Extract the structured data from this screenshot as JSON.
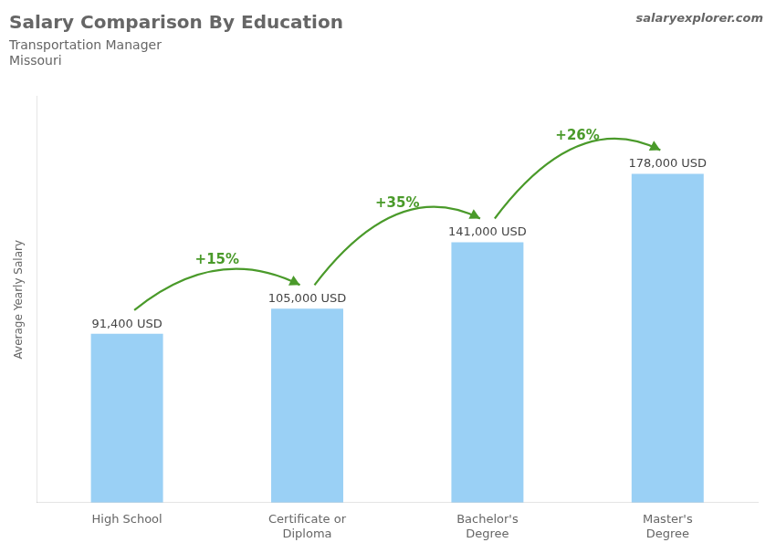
{
  "chart_data": {
    "type": "bar",
    "title": "Salary Comparison By Education",
    "subtitle": "Transportation Manager",
    "location": "Missouri",
    "credit": "salaryexplorer.com",
    "y_label": "Average Yearly Salary",
    "categories": [
      "High School",
      "Certificate or\nDiploma",
      "Bachelor's\nDegree",
      "Master's\nDegree"
    ],
    "values": [
      91400,
      105000,
      141000,
      178000
    ],
    "value_labels": [
      "91,400 USD",
      "105,000 USD",
      "141,000 USD",
      "178,000 USD"
    ],
    "data_labels": true,
    "annotations": [
      {
        "text": "+15%",
        "from": "High School",
        "to": "Certificate or\nDiploma"
      },
      {
        "text": "+35%",
        "from": "Certificate or\nDiploma",
        "to": "Bachelor's\nDegree"
      },
      {
        "text": "+26%",
        "from": "Bachelor's\nDegree",
        "to": "Master's\nDegree"
      }
    ],
    "ylim": [
      0,
      220000
    ],
    "grid": false,
    "tick_labels": "x"
  }
}
